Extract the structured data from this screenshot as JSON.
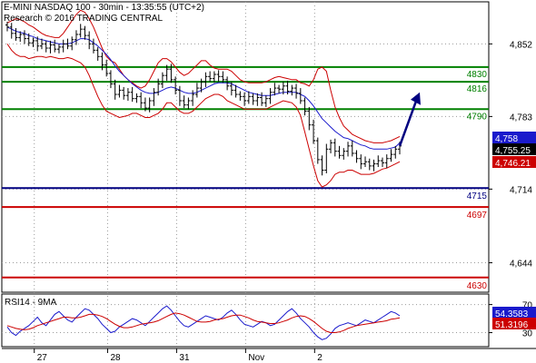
{
  "header": {
    "line1": "E-MINI NASDAQ 100 - 30min - 13:35:55 (UTC+2)",
    "line2": "Research © 2016 TRADING CENTRAL"
  },
  "colors": {
    "price": "#000000",
    "bollinger": "#cc0000",
    "moving_average": "#1a1acc",
    "resistance": "#008000",
    "support_blue": "#000080",
    "support_red": "#cc0000",
    "forecast_arrow": "#000080",
    "rsi_line": "#1a1acc",
    "rsi_ma": "#cc0000"
  },
  "chart_data": [
    {
      "type": "line",
      "subtype": "candlestick-with-indicators",
      "x_ticks": [
        "27",
        "28",
        "31",
        "Nov",
        "2"
      ],
      "y_ticks": [
        "4,852",
        "4,783",
        "4,714",
        "4,644"
      ],
      "ylim": [
        4616,
        4892
      ],
      "levels": [
        {
          "name": "resistance",
          "value": 4830,
          "label": "4830",
          "color": "#008000"
        },
        {
          "name": "resistance",
          "value": 4816,
          "label": "4816",
          "color": "#008000"
        },
        {
          "name": "resistance",
          "value": 4790,
          "label": "4790",
          "color": "#008000"
        },
        {
          "name": "support",
          "value": 4715,
          "label": "4715",
          "color": "#000080"
        },
        {
          "name": "support",
          "value": 4697,
          "label": "4697",
          "color": "#cc0000"
        },
        {
          "name": "support",
          "value": 4630,
          "label": "4630",
          "color": "#cc0000"
        }
      ],
      "price_tags": [
        {
          "label": "4,758",
          "value": 4758,
          "color": "#1a1acc"
        },
        {
          "label": "4,755.25",
          "value": 4755.25,
          "color": "#000000"
        },
        {
          "label": "4,746.21",
          "value": 4746.21,
          "color": "#cc0000"
        }
      ],
      "price_series": [
        4868,
        4862,
        4858,
        4861,
        4857,
        4853,
        4855,
        4850,
        4852,
        4848,
        4851,
        4847,
        4849,
        4852,
        4850,
        4856,
        4861,
        4866,
        4860,
        4852,
        4846,
        4840,
        4832,
        4824,
        4814,
        4804,
        4808,
        4803,
        4806,
        4800,
        4802,
        4796,
        4791,
        4798,
        4806,
        4814,
        4822,
        4828,
        4818,
        4808,
        4798,
        4794,
        4798,
        4804,
        4810,
        4816,
        4821,
        4819,
        4823,
        4821,
        4818,
        4812,
        4808,
        4804,
        4802,
        4798,
        4802,
        4798,
        4801,
        4796,
        4800,
        4806,
        4810,
        4809,
        4812,
        4807,
        4810,
        4805,
        4798,
        4788,
        4775,
        4760,
        4742,
        4732,
        4752,
        4758,
        4750,
        4746,
        4750,
        4755,
        4748,
        4743,
        4738,
        4740,
        4736,
        4738,
        4741,
        4739,
        4743,
        4747,
        4752,
        4755
      ],
      "bollinger_upper": [
        4872,
        4874,
        4876,
        4875,
        4873,
        4870,
        4868,
        4865,
        4862,
        4860,
        4859,
        4858,
        4858,
        4862,
        4868,
        4874,
        4880,
        4884,
        4882,
        4876,
        4868,
        4858,
        4848,
        4840,
        4836,
        4834,
        4828,
        4822,
        4818,
        4815,
        4812,
        4810,
        4812,
        4818,
        4826,
        4834,
        4838,
        4838,
        4835,
        4830,
        4825,
        4822,
        4824,
        4828,
        4832,
        4836,
        4836,
        4832,
        4829,
        4828,
        4828,
        4828,
        4826,
        4822,
        4818,
        4816,
        4815,
        4815,
        4815,
        4815,
        4816,
        4818,
        4820,
        4821,
        4820,
        4819,
        4818,
        4818,
        4815,
        4814,
        4812,
        4818,
        4828,
        4830,
        4826,
        4808,
        4792,
        4782,
        4774,
        4770,
        4766,
        4764,
        4762,
        4760,
        4759,
        4758,
        4758,
        4758,
        4759,
        4760,
        4762,
        4764
      ],
      "bollinger_lower": [
        4852,
        4846,
        4842,
        4840,
        4840,
        4838,
        4839,
        4840,
        4840,
        4839,
        4840,
        4839,
        4838,
        4838,
        4839,
        4838,
        4836,
        4834,
        4830,
        4822,
        4812,
        4802,
        4794,
        4788,
        4786,
        4784,
        4782,
        4783,
        4784,
        4786,
        4786,
        4784,
        4782,
        4782,
        4784,
        4786,
        4790,
        4796,
        4796,
        4792,
        4788,
        4786,
        4786,
        4788,
        4792,
        4796,
        4800,
        4802,
        4804,
        4804,
        4802,
        4798,
        4796,
        4794,
        4792,
        4790,
        4790,
        4790,
        4790,
        4790,
        4790,
        4792,
        4794,
        4796,
        4798,
        4797,
        4796,
        4792,
        4784,
        4768,
        4752,
        4736,
        4722,
        4716,
        4718,
        4722,
        4728,
        4730,
        4730,
        4732,
        4732,
        4730,
        4728,
        4728,
        4728,
        4729,
        4731,
        4733,
        4734,
        4736,
        4738,
        4740
      ],
      "moving_average": [
        4868,
        4866,
        4864,
        4863,
        4862,
        4860,
        4859,
        4857,
        4856,
        4855,
        4854,
        4853,
        4852,
        4852,
        4852,
        4853,
        4855,
        4857,
        4857,
        4856,
        4853,
        4850,
        4846,
        4842,
        4837,
        4831,
        4826,
        4822,
        4818,
        4814,
        4811,
        4808,
        4806,
        4805,
        4805,
        4806,
        4808,
        4810,
        4811,
        4810,
        4808,
        4806,
        4805,
        4805,
        4806,
        4808,
        4810,
        4812,
        4814,
        4815,
        4815,
        4815,
        4814,
        4812,
        4810,
        4808,
        4806,
        4805,
        4804,
        4803,
        4803,
        4803,
        4804,
        4805,
        4806,
        4806,
        4806,
        4806,
        4804,
        4802,
        4798,
        4793,
        4787,
        4781,
        4777,
        4773,
        4769,
        4766,
        4763,
        4762,
        4760,
        4758,
        4756,
        4755,
        4753,
        4752,
        4752,
        4752,
        4752,
        4753,
        4754,
        4758
      ]
    },
    {
      "type": "line",
      "subtype": "oscillator",
      "title": "RSI14 - 9MA",
      "y_ticks": [
        "70",
        "30"
      ],
      "ylim": [
        10,
        85
      ],
      "price_tags": [
        {
          "label": "54.3583",
          "value": 54.36,
          "color": "#1a1acc"
        },
        {
          "label": "51.3196",
          "value": 51.32,
          "color": "#cc0000"
        }
      ],
      "series": [
        {
          "name": "RSI14",
          "color": "#1a1acc",
          "values": [
            38,
            30,
            26,
            32,
            36,
            40,
            46,
            52,
            44,
            40,
            48,
            56,
            60,
            54,
            48,
            45,
            52,
            58,
            64,
            62,
            56,
            50,
            42,
            36,
            30,
            32,
            38,
            42,
            46,
            50,
            48,
            44,
            40,
            46,
            52,
            58,
            64,
            68,
            62,
            54,
            46,
            40,
            38,
            42,
            46,
            50,
            54,
            52,
            50,
            48,
            52,
            58,
            62,
            56,
            48,
            42,
            40,
            38,
            42,
            46,
            44,
            40,
            42,
            48,
            54,
            60,
            64,
            58,
            50,
            44,
            38,
            30,
            24,
            20,
            22,
            28,
            36,
            40,
            42,
            44,
            42,
            40,
            44,
            48,
            46,
            44,
            48,
            52,
            56,
            60,
            58,
            54
          ]
        },
        {
          "name": "9MA",
          "color": "#cc0000",
          "values": [
            40,
            38,
            36,
            35,
            34,
            35,
            37,
            40,
            42,
            44,
            46,
            48,
            50,
            52,
            52,
            51,
            51,
            52,
            54,
            56,
            56,
            55,
            53,
            50,
            46,
            42,
            39,
            37,
            37,
            38,
            40,
            42,
            43,
            44,
            45,
            47,
            50,
            53,
            56,
            58,
            57,
            55,
            52,
            49,
            46,
            45,
            45,
            46,
            48,
            49,
            50,
            52,
            54,
            55,
            55,
            53,
            51,
            48,
            46,
            45,
            44,
            43,
            43,
            44,
            46,
            48,
            51,
            53,
            54,
            53,
            50,
            46,
            41,
            36,
            32,
            30,
            30,
            31,
            33,
            36,
            38,
            40,
            41,
            42,
            43,
            44,
            45,
            46,
            47,
            49,
            50,
            51
          ]
        }
      ]
    }
  ]
}
